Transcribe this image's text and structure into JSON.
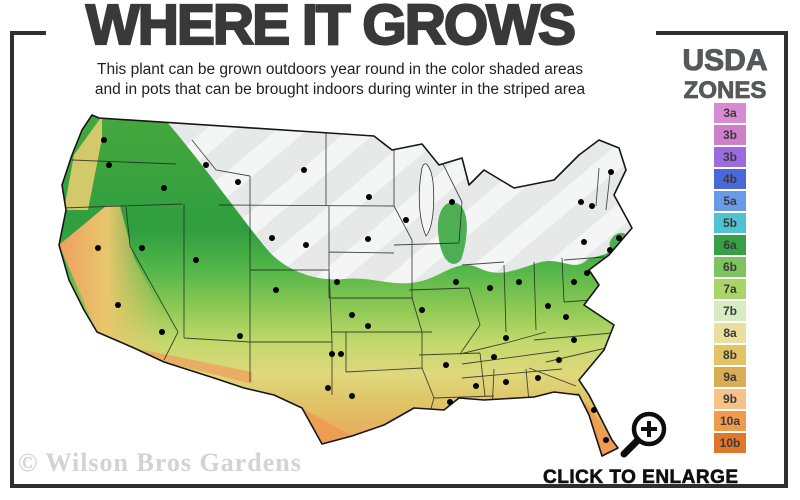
{
  "header": {
    "title": "WHERE IT GROWS",
    "subtitle_line1": "This plant can be grown outdoors year round in the color shaded areas",
    "subtitle_line2": "and in pots that can be brought indoors during winter in the striped area"
  },
  "legend": {
    "title_line1": "USDA",
    "title_line2": "ZONES",
    "zones": [
      {
        "label": "3a",
        "color": "#d98ad4"
      },
      {
        "label": "3b",
        "color": "#cf7ec9"
      },
      {
        "label": "3b",
        "color": "#9a6ce0"
      },
      {
        "label": "4b",
        "color": "#4a68d8"
      },
      {
        "label": "5a",
        "color": "#699ae8"
      },
      {
        "label": "5b",
        "color": "#4fc4d0"
      },
      {
        "label": "6a",
        "color": "#35a046"
      },
      {
        "label": "6b",
        "color": "#7ec45e"
      },
      {
        "label": "7a",
        "color": "#a8d468"
      },
      {
        "label": "7b",
        "color": "#d8ecc4"
      },
      {
        "label": "8a",
        "color": "#ebdf9f"
      },
      {
        "label": "8b",
        "color": "#e3c465"
      },
      {
        "label": "9a",
        "color": "#d8ad55"
      },
      {
        "label": "9b",
        "color": "#f5c289"
      },
      {
        "label": "10a",
        "color": "#f09a4c"
      },
      {
        "label": "10b",
        "color": "#e0782c"
      }
    ]
  },
  "map": {
    "region_label": "contiguous United States",
    "shaded_meaning": "color shaded = grows outdoors year round",
    "striped_meaning": "striped = pots brought indoors in winter"
  },
  "footer": {
    "watermark": "© Wilson Bros Gardens",
    "enlarge_label": "CLICK TO ENLARGE",
    "magnifier_icon": "magnifying-glass-plus"
  },
  "colors": {
    "frame": "#2f2f31",
    "title_text": "#39393b",
    "legend_title_text": "#57585b",
    "striped_area_fill": "#e7e8e8",
    "watermark_text": "#d3d3d3"
  }
}
